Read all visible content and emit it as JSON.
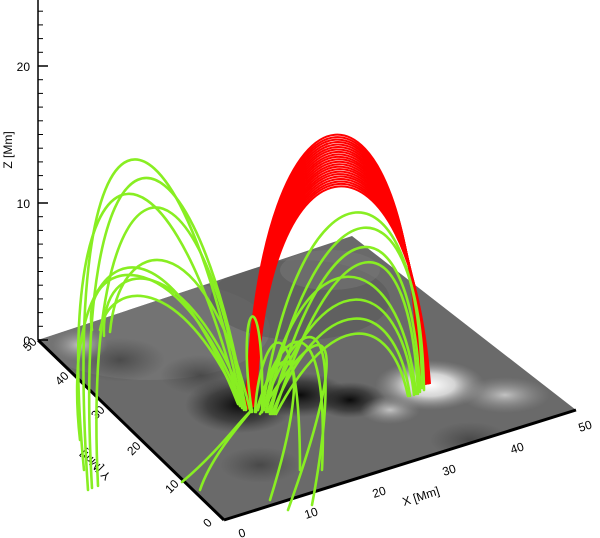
{
  "figure": {
    "z_axis": {
      "title": "Z [Mm]",
      "ticks": [
        "0",
        "10",
        "20"
      ]
    },
    "x_axis": {
      "title": "X [Mm]",
      "ticks": [
        "0",
        "10",
        "20",
        "30",
        "40",
        "50"
      ]
    },
    "y_axis": {
      "title": "Y [Mm]",
      "ticks": [
        "0",
        "10",
        "20",
        "30",
        "40",
        "50"
      ]
    },
    "colors": {
      "closed_loops": "#ff0000",
      "open_lines": "#88ee22",
      "plane_base": "#6a6a6a",
      "positive_polarity": "#ffffff",
      "negative_polarity": "#000000"
    }
  }
}
